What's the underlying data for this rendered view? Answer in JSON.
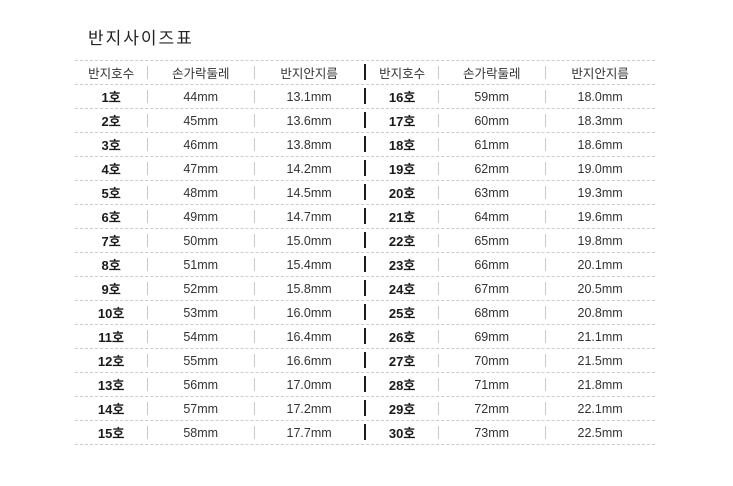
{
  "title": "반지사이즈표",
  "tables": [
    {
      "name": "ring-size-table-left",
      "headers": [
        "반지호수",
        "손가락둘레",
        "반지안지름"
      ],
      "rows": [
        [
          "1호",
          "44mm",
          "13.1mm"
        ],
        [
          "2호",
          "45mm",
          "13.6mm"
        ],
        [
          "3호",
          "46mm",
          "13.8mm"
        ],
        [
          "4호",
          "47mm",
          "14.2mm"
        ],
        [
          "5호",
          "48mm",
          "14.5mm"
        ],
        [
          "6호",
          "49mm",
          "14.7mm"
        ],
        [
          "7호",
          "50mm",
          "15.0mm"
        ],
        [
          "8호",
          "51mm",
          "15.4mm"
        ],
        [
          "9호",
          "52mm",
          "15.8mm"
        ],
        [
          "10호",
          "53mm",
          "16.0mm"
        ],
        [
          "11호",
          "54mm",
          "16.4mm"
        ],
        [
          "12호",
          "55mm",
          "16.6mm"
        ],
        [
          "13호",
          "56mm",
          "17.0mm"
        ],
        [
          "14호",
          "57mm",
          "17.2mm"
        ],
        [
          "15호",
          "58mm",
          "17.7mm"
        ]
      ]
    },
    {
      "name": "ring-size-table-right",
      "headers": [
        "반지호수",
        "손가락둘레",
        "반지안지름"
      ],
      "rows": [
        [
          "16호",
          "59mm",
          "18.0mm"
        ],
        [
          "17호",
          "60mm",
          "18.3mm"
        ],
        [
          "18호",
          "61mm",
          "18.6mm"
        ],
        [
          "19호",
          "62mm",
          "19.0mm"
        ],
        [
          "20호",
          "63mm",
          "19.3mm"
        ],
        [
          "21호",
          "64mm",
          "19.6mm"
        ],
        [
          "22호",
          "65mm",
          "19.8mm"
        ],
        [
          "23호",
          "66mm",
          "20.1mm"
        ],
        [
          "24호",
          "67mm",
          "20.5mm"
        ],
        [
          "25호",
          "68mm",
          "20.8mm"
        ],
        [
          "26호",
          "69mm",
          "21.1mm"
        ],
        [
          "27호",
          "70mm",
          "21.5mm"
        ],
        [
          "28호",
          "71mm",
          "21.8mm"
        ],
        [
          "29호",
          "72mm",
          "22.1mm"
        ],
        [
          "30호",
          "73mm",
          "22.5mm"
        ]
      ]
    }
  ],
  "colors": {
    "background": "#ffffff",
    "dashed_line": "#cccccc",
    "column_separator": "#c8c8c8",
    "table_divider": "#1c1c1c",
    "title_text": "#222222",
    "header_text": "#333333",
    "size_text": "#1a1a1a",
    "value_text": "#333333"
  }
}
